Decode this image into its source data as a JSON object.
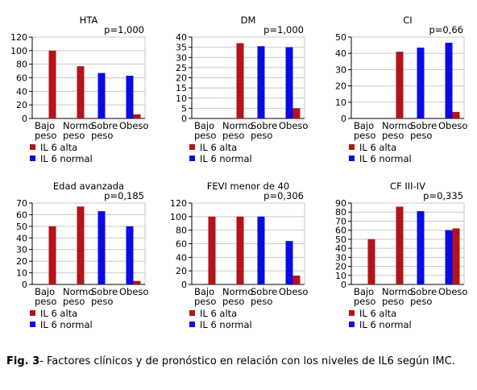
{
  "figure": {
    "caption_label": "Fig. 3",
    "caption_text": "- Factores clínicos y de pronóstico en relación con los niveles de IL6 según IMC."
  },
  "colors": {
    "alta": "#b3131a",
    "normal": "#0a0ae6"
  },
  "chart_data": [
    {
      "type": "bar",
      "title": "HTA",
      "pvalue": "p=1,000",
      "categories": [
        [
          "Bajo",
          "peso"
        ],
        [
          "Normo",
          "peso"
        ],
        [
          "Sobre",
          "peso"
        ],
        [
          "Obeso"
        ]
      ],
      "ylim": [
        0,
        120
      ],
      "yticks": [
        0,
        20,
        40,
        60,
        80,
        100,
        120
      ],
      "series": [
        {
          "name": "IL 6 alta",
          "values": [
            100,
            77,
            0,
            6
          ]
        },
        {
          "name": "IL 6 normal",
          "values": [
            0,
            0,
            67,
            63
          ]
        }
      ],
      "legend": [
        "IL 6 alta",
        "IL 6 normal"
      ]
    },
    {
      "type": "bar",
      "title": "DM",
      "pvalue": "p=1,000",
      "categories": [
        [
          "Bajo",
          "peso"
        ],
        [
          "Normo",
          "peso"
        ],
        [
          "Sobre",
          "peso"
        ],
        [
          "Obeso"
        ]
      ],
      "ylim": [
        0,
        40
      ],
      "yticks": [
        0,
        5,
        10,
        15,
        20,
        25,
        30,
        35,
        40
      ],
      "series": [
        {
          "name": "IL 6 alta",
          "values": [
            0,
            37,
            0,
            5
          ]
        },
        {
          "name": "IL 6 normal",
          "values": [
            0,
            0,
            35.5,
            35
          ]
        }
      ],
      "legend": [
        "IL 6 alta",
        "IL 6 normal"
      ]
    },
    {
      "type": "bar",
      "title": "CI",
      "pvalue": "p=0,66",
      "categories": [
        [
          "Bajo",
          "peso"
        ],
        [
          "Normo",
          "peso"
        ],
        [
          "Sobre",
          "peso"
        ],
        [
          "Obeso"
        ]
      ],
      "ylim": [
        0,
        50
      ],
      "yticks": [
        0,
        10,
        20,
        30,
        40,
        50
      ],
      "series": [
        {
          "name": "IL 6 alta",
          "values": [
            0,
            41,
            0,
            4
          ]
        },
        {
          "name": "IL 6 normal",
          "values": [
            0,
            0,
            43.5,
            46.5
          ]
        }
      ],
      "legend": [
        "IL 6 alta",
        "IL 6 normal"
      ]
    },
    {
      "type": "bar",
      "title": "Edad avanzada",
      "pvalue": "p=0,185",
      "categories": [
        [
          "Bajo",
          "peso"
        ],
        [
          "Normo",
          "peso"
        ],
        [
          "Sobre",
          "peso"
        ],
        [
          "Obeso"
        ]
      ],
      "ylim": [
        0,
        70
      ],
      "yticks": [
        0,
        10,
        20,
        30,
        40,
        50,
        60,
        70
      ],
      "series": [
        {
          "name": "IL 6 alta",
          "values": [
            50,
            67,
            0,
            3
          ]
        },
        {
          "name": "IL 6 normal",
          "values": [
            0,
            0,
            63,
            50
          ]
        }
      ],
      "legend": [
        "IL 6 alta",
        "IL 6 normal"
      ]
    },
    {
      "type": "bar",
      "title": "FEVI menor de 40",
      "pvalue": "p=0,306",
      "categories": [
        [
          "Bajo",
          "peso"
        ],
        [
          "Normo",
          "peso"
        ],
        [
          "Sobre",
          "peso"
        ],
        [
          "Obeso"
        ]
      ],
      "ylim": [
        0,
        120
      ],
      "yticks": [
        0,
        20,
        40,
        60,
        80,
        100,
        120
      ],
      "series": [
        {
          "name": "IL 6 alta",
          "values": [
            100,
            100,
            0,
            13
          ]
        },
        {
          "name": "IL 6 normal",
          "values": [
            0,
            0,
            100,
            64
          ]
        }
      ],
      "legend": [
        "IL 6 alta",
        "IL 6 normal"
      ]
    },
    {
      "type": "bar",
      "title": "CF III-IV",
      "pvalue": "p=0,335",
      "categories": [
        [
          "Bajo",
          "peso"
        ],
        [
          "Normo",
          "peso"
        ],
        [
          "Sobre",
          "peso"
        ],
        [
          "Obeso"
        ]
      ],
      "ylim": [
        0,
        90
      ],
      "yticks": [
        0,
        10,
        20,
        30,
        40,
        50,
        60,
        70,
        80,
        90
      ],
      "series": [
        {
          "name": "IL 6 alta",
          "values": [
            50,
            86,
            0,
            62
          ]
        },
        {
          "name": "IL 6 normal",
          "values": [
            0,
            0,
            81,
            60
          ]
        }
      ],
      "legend": [
        "IL 6 alta",
        "IL 6 normal"
      ]
    }
  ]
}
